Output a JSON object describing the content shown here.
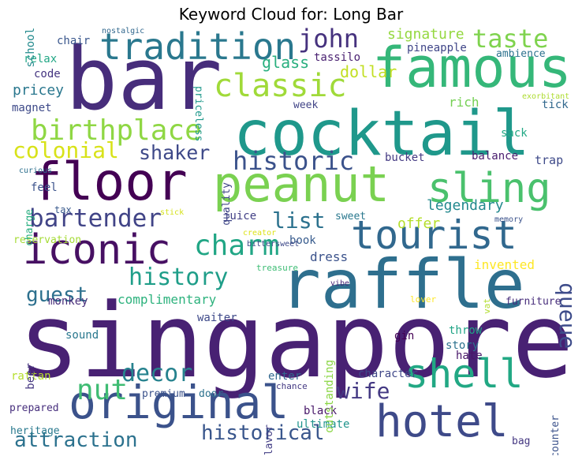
{
  "title": "Keyword Cloud for: Long Bar",
  "words": [
    {
      "text": "bar",
      "color": "#472d7b"
    },
    {
      "text": "singapore",
      "color": "#482173"
    },
    {
      "text": "cocktail",
      "color": "#1f988b"
    },
    {
      "text": "raffle",
      "color": "#2e6f8e"
    },
    {
      "text": "famous",
      "color": "#35b779"
    },
    {
      "text": "peanut",
      "color": "#7ad151"
    },
    {
      "text": "floor",
      "color": "#440154"
    },
    {
      "text": "original",
      "color": "#3b528b"
    },
    {
      "text": "iconic",
      "color": "#471063"
    },
    {
      "text": "tourist",
      "color": "#31688e"
    },
    {
      "text": "sling",
      "color": "#4ac16d"
    },
    {
      "text": "tradition",
      "color": "#2a788e"
    },
    {
      "text": "hotel",
      "color": "#3e4a89"
    },
    {
      "text": "shell",
      "color": "#22a884"
    },
    {
      "text": "classic",
      "color": "#a0da39"
    },
    {
      "text": "birthplace",
      "color": "#8fd744"
    },
    {
      "text": "charm",
      "color": "#21a685"
    },
    {
      "text": "historic",
      "color": "#3b528b"
    },
    {
      "text": "bartender",
      "color": "#414487"
    },
    {
      "text": "history",
      "color": "#1f9e89"
    },
    {
      "text": "taste",
      "color": "#7fd34e"
    },
    {
      "text": "john",
      "color": "#46327e"
    },
    {
      "text": "nut",
      "color": "#3fbc73"
    },
    {
      "text": "wife",
      "color": "#443983"
    },
    {
      "text": "decor",
      "color": "#26828e"
    },
    {
      "text": "historical",
      "color": "#39568c"
    },
    {
      "text": "attraction",
      "color": "#2c728e"
    },
    {
      "text": "guest",
      "color": "#2d708e"
    },
    {
      "text": "afternoon",
      "color": "#1e9b8a"
    },
    {
      "text": "queue",
      "color": "#3e4c8a"
    },
    {
      "text": "colonial",
      "color": "#d8e219"
    },
    {
      "text": "shaker",
      "color": "#3e4989"
    },
    {
      "text": "list",
      "color": "#2c728e"
    },
    {
      "text": "legendary",
      "color": "#23898e"
    },
    {
      "text": "signature",
      "color": "#95d840"
    },
    {
      "text": "glass",
      "color": "#29af7f"
    },
    {
      "text": "dollar",
      "color": "#c2df23"
    },
    {
      "text": "complimentary",
      "color": "#2db27d"
    },
    {
      "text": "invented",
      "color": "#fde725"
    },
    {
      "text": "offer",
      "color": "#b5de2b"
    },
    {
      "text": "dress",
      "color": "#3b528b"
    },
    {
      "text": "book",
      "color": "#375b8d"
    },
    {
      "text": "pricey",
      "color": "#2a778e"
    },
    {
      "text": "code",
      "color": "#453581"
    },
    {
      "text": "bucket",
      "color": "#443a83"
    },
    {
      "text": "rich",
      "color": "#75d054"
    },
    {
      "text": "sweet",
      "color": "#2a788e"
    },
    {
      "text": "juice",
      "color": "#424086"
    },
    {
      "text": "waiter",
      "color": "#3e4989"
    },
    {
      "text": "trap",
      "color": "#3e4a89"
    },
    {
      "text": "pineapple",
      "color": "#404688"
    },
    {
      "text": "tassilo",
      "color": "#481f70"
    },
    {
      "text": "chair",
      "color": "#39568c"
    },
    {
      "text": "relax",
      "color": "#22a785"
    },
    {
      "text": "magnet",
      "color": "#3e4a89"
    },
    {
      "text": "school",
      "color": "#238a8d"
    },
    {
      "text": "ambience",
      "color": "#2c728e"
    },
    {
      "text": "week",
      "color": "#414487"
    },
    {
      "text": "sack",
      "color": "#22a884"
    },
    {
      "text": "tick",
      "color": "#31688e"
    },
    {
      "text": "balance",
      "color": "#481b6d"
    },
    {
      "text": "feel",
      "color": "#3b528b"
    },
    {
      "text": "tax",
      "color": "#38598c"
    },
    {
      "text": "reservation",
      "color": "#a5db36"
    },
    {
      "text": "monkey",
      "color": "#472c7a"
    },
    {
      "text": "sound",
      "color": "#2a788e"
    },
    {
      "text": "rattan",
      "color": "#b5de2b"
    },
    {
      "text": "prepared",
      "color": "#472f7d"
    },
    {
      "text": "heritage",
      "color": "#29798e"
    },
    {
      "text": "beer",
      "color": "#453781"
    },
    {
      "text": "premium",
      "color": "#3b528b"
    },
    {
      "text": "door",
      "color": "#2c728e"
    },
    {
      "text": "chance",
      "color": "#443983"
    },
    {
      "text": "enter",
      "color": "#31688e"
    },
    {
      "text": "black",
      "color": "#481769"
    },
    {
      "text": "ultimate",
      "color": "#1f948c"
    },
    {
      "text": "character",
      "color": "#3f4788"
    },
    {
      "text": "story",
      "color": "#2c728e"
    },
    {
      "text": "hate",
      "color": "#481769"
    },
    {
      "text": "throw",
      "color": "#20a486"
    },
    {
      "text": "gin",
      "color": "#440154"
    },
    {
      "text": "counter",
      "color": "#3b528b"
    },
    {
      "text": "bag",
      "color": "#453882"
    },
    {
      "text": "furniture",
      "color": "#472d7b"
    },
    {
      "text": "lover",
      "color": "#fde725"
    },
    {
      "text": "vat",
      "color": "#b2dd2d"
    },
    {
      "text": "creator",
      "color": "#dde318"
    },
    {
      "text": "bittersweet",
      "color": "#3e4989"
    },
    {
      "text": "vibe",
      "color": "#482878"
    },
    {
      "text": "treasure",
      "color": "#3dbc74"
    },
    {
      "text": "memory",
      "color": "#3b528b"
    },
    {
      "text": "curious",
      "color": "#2d708e"
    },
    {
      "text": "nostalgic",
      "color": "#31688e"
    },
    {
      "text": "priceless",
      "color": "#1f988b"
    },
    {
      "text": "exorbitant",
      "color": "#addc30"
    },
    {
      "text": "stick",
      "color": "#d5e21a"
    },
    {
      "text": "charge",
      "color": "#28ae80"
    },
    {
      "text": "quality",
      "color": "#3f4788"
    },
    {
      "text": "outstanding",
      "color": "#8bd646"
    },
    {
      "text": "flavor",
      "color": "#433e85"
    }
  ]
}
